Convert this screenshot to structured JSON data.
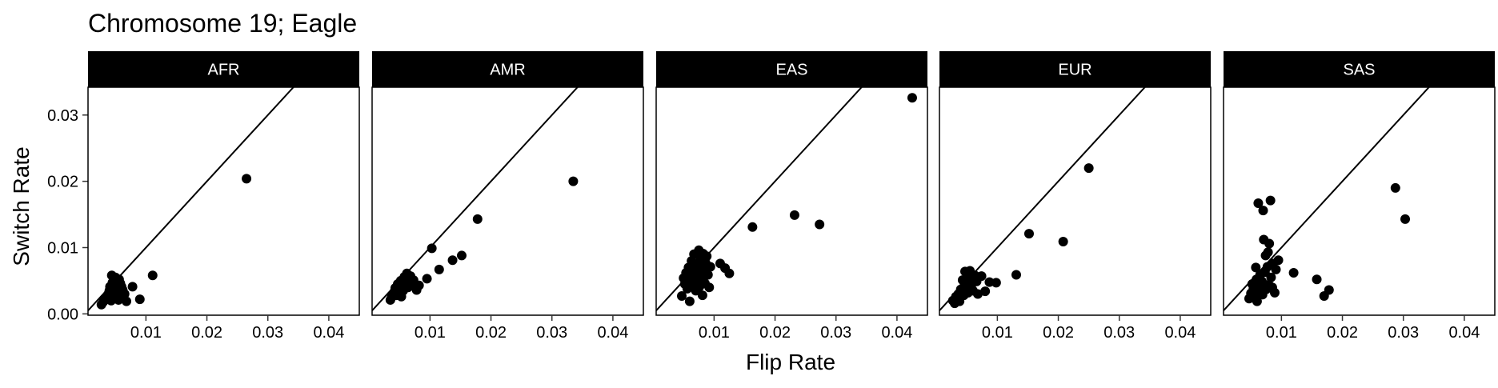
{
  "chart_data": {
    "type": "scatter",
    "title": "Chromosome 19; Eagle",
    "xlabel": "Flip Rate",
    "ylabel": "Switch Rate",
    "xlim": [
      0.0005,
      0.045
    ],
    "ylim": [
      -0.0002,
      0.0342
    ],
    "x_ticks": [
      0.01,
      0.02,
      0.03,
      0.04
    ],
    "x_tick_labels": [
      "0.01",
      "0.02",
      "0.03",
      "0.04"
    ],
    "y_ticks": [
      0.0,
      0.01,
      0.02,
      0.03
    ],
    "y_tick_labels": [
      "0.00",
      "0.01",
      "0.02",
      "0.03"
    ],
    "reference_line": "y = x",
    "grid": false,
    "colors": {
      "strip_background": "#000000",
      "strip_text": "#ffffff",
      "points": "#000000",
      "line": "#000000"
    },
    "panels": [
      {
        "name": "AFR",
        "points": [
          [
            0.0027,
            0.0014
          ],
          [
            0.003,
            0.0018
          ],
          [
            0.0032,
            0.0022
          ],
          [
            0.0035,
            0.0025
          ],
          [
            0.0037,
            0.0028
          ],
          [
            0.0039,
            0.0031
          ],
          [
            0.004,
            0.0035
          ],
          [
            0.0041,
            0.0041
          ],
          [
            0.0043,
            0.002
          ],
          [
            0.0044,
            0.0058
          ],
          [
            0.0045,
            0.0047
          ],
          [
            0.0046,
            0.0026
          ],
          [
            0.0047,
            0.0037
          ],
          [
            0.0048,
            0.0033
          ],
          [
            0.005,
            0.0055
          ],
          [
            0.0051,
            0.0029
          ],
          [
            0.0052,
            0.0044
          ],
          [
            0.0053,
            0.0039
          ],
          [
            0.0055,
            0.0021
          ],
          [
            0.0056,
            0.0052
          ],
          [
            0.0057,
            0.0032
          ],
          [
            0.0058,
            0.0046
          ],
          [
            0.0059,
            0.0027
          ],
          [
            0.006,
            0.0041
          ],
          [
            0.0062,
            0.0036
          ],
          [
            0.0065,
            0.003
          ],
          [
            0.0068,
            0.0019
          ],
          [
            0.0078,
            0.0041
          ],
          [
            0.009,
            0.0022
          ],
          [
            0.0111,
            0.0058
          ],
          [
            0.0265,
            0.0204
          ]
        ]
      },
      {
        "name": "AMR",
        "points": [
          [
            0.0035,
            0.0021
          ],
          [
            0.0037,
            0.0025
          ],
          [
            0.004,
            0.003
          ],
          [
            0.0042,
            0.0034
          ],
          [
            0.0043,
            0.0039
          ],
          [
            0.0045,
            0.0028
          ],
          [
            0.0047,
            0.0045
          ],
          [
            0.0048,
            0.0031
          ],
          [
            0.005,
            0.0037
          ],
          [
            0.0052,
            0.005
          ],
          [
            0.0053,
            0.0026
          ],
          [
            0.0055,
            0.0042
          ],
          [
            0.0056,
            0.0035
          ],
          [
            0.0058,
            0.0056
          ],
          [
            0.006,
            0.0047
          ],
          [
            0.0062,
            0.0061
          ],
          [
            0.0064,
            0.004
          ],
          [
            0.0066,
            0.0052
          ],
          [
            0.0068,
            0.0057
          ],
          [
            0.007,
            0.0046
          ],
          [
            0.0073,
            0.0051
          ],
          [
            0.0078,
            0.0036
          ],
          [
            0.0082,
            0.0043
          ],
          [
            0.0095,
            0.0053
          ],
          [
            0.0103,
            0.0099
          ],
          [
            0.0115,
            0.0067
          ],
          [
            0.0137,
            0.0081
          ],
          [
            0.0152,
            0.0088
          ],
          [
            0.0178,
            0.0143
          ],
          [
            0.0335,
            0.02
          ]
        ]
      },
      {
        "name": "EAS",
        "points": [
          [
            0.0047,
            0.0027
          ],
          [
            0.005,
            0.0054
          ],
          [
            0.0052,
            0.0045
          ],
          [
            0.0054,
            0.0062
          ],
          [
            0.0056,
            0.0038
          ],
          [
            0.0058,
            0.007
          ],
          [
            0.006,
            0.0019
          ],
          [
            0.0062,
            0.0052
          ],
          [
            0.0063,
            0.008
          ],
          [
            0.0064,
            0.0057
          ],
          [
            0.0066,
            0.0043
          ],
          [
            0.0067,
            0.009
          ],
          [
            0.0068,
            0.0066
          ],
          [
            0.007,
            0.0035
          ],
          [
            0.0071,
            0.0048
          ],
          [
            0.0072,
            0.0075
          ],
          [
            0.0073,
            0.006
          ],
          [
            0.0075,
            0.0096
          ],
          [
            0.0076,
            0.0041
          ],
          [
            0.0077,
            0.0069
          ],
          [
            0.0078,
            0.0083
          ],
          [
            0.008,
            0.0055
          ],
          [
            0.0081,
            0.0028
          ],
          [
            0.0082,
            0.0091
          ],
          [
            0.0083,
            0.0064
          ],
          [
            0.0085,
            0.0046
          ],
          [
            0.0086,
            0.0077
          ],
          [
            0.0088,
            0.0087
          ],
          [
            0.009,
            0.0059
          ],
          [
            0.0092,
            0.004
          ],
          [
            0.0094,
            0.0071
          ],
          [
            0.011,
            0.0076
          ],
          [
            0.0118,
            0.0069
          ],
          [
            0.0125,
            0.0061
          ],
          [
            0.0163,
            0.0131
          ],
          [
            0.0232,
            0.0149
          ],
          [
            0.0273,
            0.0135
          ],
          [
            0.0425,
            0.0326
          ]
        ]
      },
      {
        "name": "EUR",
        "points": [
          [
            0.0027,
            0.002
          ],
          [
            0.003,
            0.0016
          ],
          [
            0.0032,
            0.0026
          ],
          [
            0.0034,
            0.0023
          ],
          [
            0.0036,
            0.003
          ],
          [
            0.0038,
            0.0019
          ],
          [
            0.004,
            0.0037
          ],
          [
            0.0042,
            0.0033
          ],
          [
            0.0043,
            0.0051
          ],
          [
            0.0045,
            0.0028
          ],
          [
            0.0046,
            0.0043
          ],
          [
            0.0047,
            0.0064
          ],
          [
            0.0048,
            0.0038
          ],
          [
            0.005,
            0.0055
          ],
          [
            0.0052,
            0.0032
          ],
          [
            0.0054,
            0.0047
          ],
          [
            0.0055,
            0.0065
          ],
          [
            0.0057,
            0.0041
          ],
          [
            0.006,
            0.0035
          ],
          [
            0.0063,
            0.0058
          ],
          [
            0.0066,
            0.0049
          ],
          [
            0.0068,
            0.003
          ],
          [
            0.0074,
            0.0057
          ],
          [
            0.008,
            0.0034
          ],
          [
            0.0087,
            0.0048
          ],
          [
            0.0098,
            0.0047
          ],
          [
            0.0131,
            0.0059
          ],
          [
            0.0152,
            0.0121
          ],
          [
            0.0208,
            0.0109
          ],
          [
            0.025,
            0.022
          ]
        ]
      },
      {
        "name": "SAS",
        "points": [
          [
            0.0047,
            0.0023
          ],
          [
            0.005,
            0.0031
          ],
          [
            0.0052,
            0.0045
          ],
          [
            0.0054,
            0.0038
          ],
          [
            0.0056,
            0.0027
          ],
          [
            0.0058,
            0.007
          ],
          [
            0.0059,
            0.0052
          ],
          [
            0.006,
            0.0019
          ],
          [
            0.0062,
            0.0167
          ],
          [
            0.0063,
            0.0042
          ],
          [
            0.0065,
            0.0059
          ],
          [
            0.0066,
            0.0034
          ],
          [
            0.0068,
            0.0049
          ],
          [
            0.0069,
            0.0029
          ],
          [
            0.007,
            0.0156
          ],
          [
            0.0071,
            0.0112
          ],
          [
            0.0073,
            0.0063
          ],
          [
            0.0074,
            0.0088
          ],
          [
            0.0075,
            0.0037
          ],
          [
            0.0077,
            0.0071
          ],
          [
            0.0078,
            0.0093
          ],
          [
            0.0079,
            0.0044
          ],
          [
            0.008,
            0.0106
          ],
          [
            0.0082,
            0.0171
          ],
          [
            0.0083,
            0.0055
          ],
          [
            0.0085,
            0.004
          ],
          [
            0.0086,
            0.0076
          ],
          [
            0.0089,
            0.0032
          ],
          [
            0.0091,
            0.0067
          ],
          [
            0.0095,
            0.0081
          ],
          [
            0.012,
            0.0062
          ],
          [
            0.0158,
            0.0052
          ],
          [
            0.017,
            0.0027
          ],
          [
            0.0178,
            0.0036
          ],
          [
            0.0287,
            0.019
          ],
          [
            0.0303,
            0.0143
          ]
        ]
      }
    ]
  }
}
